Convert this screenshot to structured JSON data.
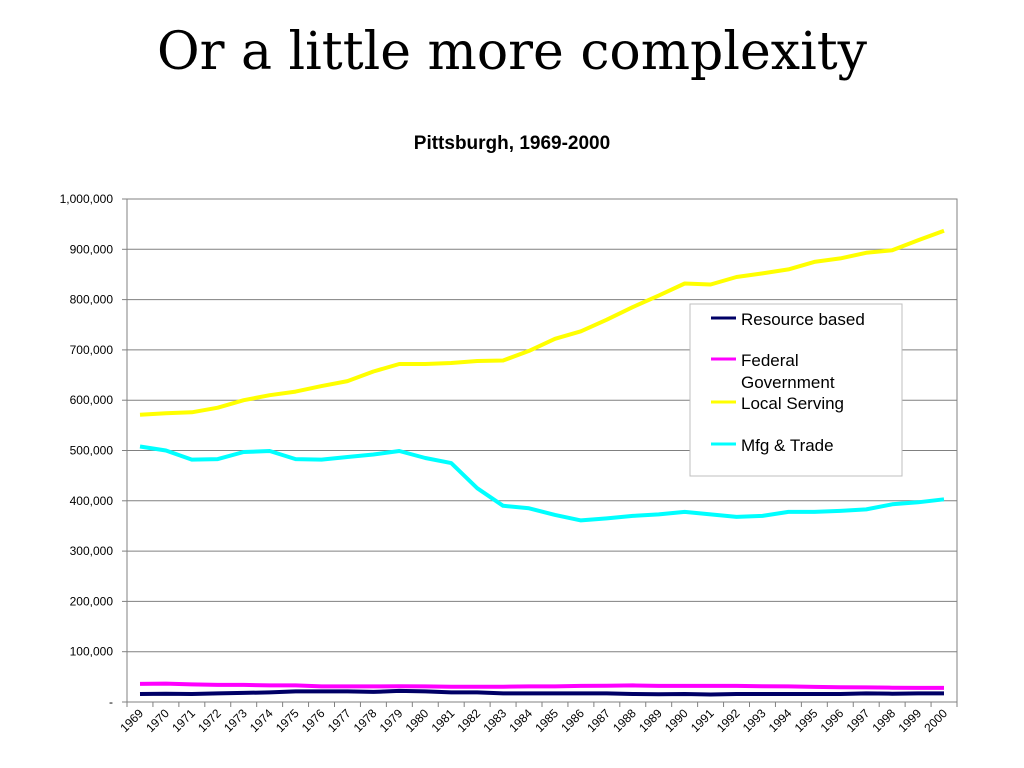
{
  "slide": {
    "title": "Or a little more complexity"
  },
  "chart_data": {
    "type": "line",
    "title": "Pittsburgh, 1969-2000",
    "xlabel": "",
    "ylabel": "",
    "ylim": [
      0,
      1000000
    ],
    "yticks": [
      0,
      100000,
      200000,
      300000,
      400000,
      500000,
      600000,
      700000,
      800000,
      900000,
      1000000
    ],
    "ytick_labels": [
      "-",
      "100,000",
      "200,000",
      "300,000",
      "400,000",
      "500,000",
      "600,000",
      "700,000",
      "800,000",
      "900,000",
      "1,000,000"
    ],
    "categories": [
      "1969",
      "1970",
      "1971",
      "1972",
      "1973",
      "1974",
      "1975",
      "1976",
      "1977",
      "1978",
      "1979",
      "1980",
      "1981",
      "1982",
      "1983",
      "1984",
      "1985",
      "1986",
      "1987",
      "1988",
      "1989",
      "1990",
      "1991",
      "1992",
      "1993",
      "1994",
      "1995",
      "1996",
      "1997",
      "1998",
      "1999",
      "2000"
    ],
    "grid": "horizontal",
    "legend_position": "right",
    "series": [
      {
        "name": "Resource based",
        "color": "#000066",
        "values": [
          16000,
          16500,
          16000,
          17000,
          18000,
          19000,
          21000,
          21000,
          21000,
          20000,
          22000,
          21000,
          19000,
          19000,
          17000,
          17000,
          17000,
          17000,
          17000,
          16000,
          15500,
          16000,
          15000,
          16000,
          16000,
          16000,
          16000,
          16000,
          17000,
          16500,
          17000,
          17000
        ]
      },
      {
        "name": "Federal Government",
        "color": "#ff00ff",
        "values": [
          36000,
          36500,
          35000,
          34000,
          34000,
          33000,
          33000,
          31000,
          31000,
          31000,
          31500,
          31000,
          30500,
          30500,
          30500,
          31000,
          31000,
          32000,
          32500,
          33000,
          32000,
          32000,
          32000,
          32000,
          31500,
          31000,
          30000,
          29500,
          29000,
          28500,
          28000,
          28000
        ]
      },
      {
        "name": "Local Serving",
        "color": "#ffff00",
        "values": [
          571000,
          574000,
          576000,
          585000,
          600000,
          610000,
          617000,
          628000,
          638000,
          657000,
          672000,
          672000,
          674000,
          678000,
          679000,
          698000,
          722000,
          737000,
          760000,
          785000,
          808000,
          832000,
          830000,
          845000,
          852000,
          860000,
          875000,
          882000,
          893000,
          898000,
          918000,
          937000
        ]
      },
      {
        "name": "Mfg & Trade",
        "color": "#00ffff",
        "values": [
          508000,
          500000,
          482000,
          483000,
          497000,
          499000,
          483000,
          482000,
          487000,
          492000,
          499000,
          485000,
          475000,
          425000,
          390000,
          385000,
          372000,
          361000,
          365000,
          370000,
          373000,
          378000,
          373000,
          368000,
          370000,
          378000,
          378000,
          380000,
          383000,
          393000,
          397000,
          403000
        ]
      }
    ]
  }
}
